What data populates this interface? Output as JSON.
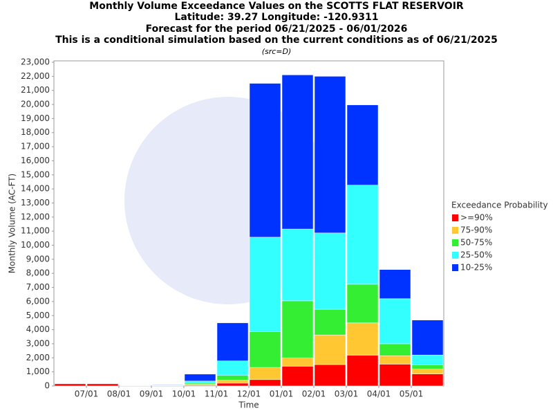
{
  "chart_data": {
    "type": "stacked-bar",
    "title": "Monthly Volume Exceedance Values on the SCOTTS FLAT RESERVOIR",
    "title_lines": [
      "Latitude: 39.27 Longitude: -120.9311",
      "Forecast for the period 06/21/2025 - 06/01/2026",
      "This is a conditional simulation based on the current conditions as of 06/21/2025"
    ],
    "subtitle": "(src=D)",
    "x_label": "Time",
    "y_label": "Monthly Volume (AC-FT)",
    "legend_title": "Exceedance Probability",
    "categories": [
      null,
      "07/01",
      "08/01",
      "09/01",
      "10/01",
      "11/01",
      "12/01",
      "01/01",
      "02/01",
      "03/01",
      "04/01",
      "05/01"
    ],
    "series": [
      {
        "name": ">=90%",
        "color": "#ff0000",
        "values": [
          150,
          150,
          20,
          20,
          50,
          200,
          450,
          1400,
          1520,
          2180,
          1550,
          850
        ]
      },
      {
        "name": "75-90%",
        "color": "#ffc833",
        "values": [
          0,
          0,
          10,
          10,
          50,
          200,
          870,
          600,
          2100,
          2300,
          600,
          350
        ]
      },
      {
        "name": "50-75%",
        "color": "#33ee33",
        "values": [
          0,
          0,
          10,
          10,
          100,
          350,
          2530,
          4050,
          1830,
          2750,
          850,
          300
        ]
      },
      {
        "name": "25-50%",
        "color": "#33ffff",
        "values": [
          0,
          0,
          10,
          30,
          150,
          1030,
          6720,
          5100,
          5420,
          7040,
          3200,
          700
        ]
      },
      {
        "name": "10-25%",
        "color": "#0033ff",
        "values": [
          0,
          0,
          10,
          30,
          490,
          2700,
          10930,
          10950,
          11130,
          5700,
          2070,
          2480
        ]
      }
    ],
    "ylim": [
      0,
      23000
    ],
    "yticks": [
      0,
      {
        "value": 1000,
        "label": "1,000"
      },
      {
        "value": 2000,
        "label": "2,000"
      },
      {
        "value": 3000,
        "label": "3,000"
      },
      {
        "value": 4000,
        "label": "4,000"
      },
      {
        "value": 5000,
        "label": "5,000"
      },
      {
        "value": 6000,
        "label": "6,000"
      },
      {
        "value": 7000,
        "label": "7,000"
      },
      {
        "value": 8000,
        "label": "8,000"
      },
      {
        "value": 9000,
        "label": "9,000"
      },
      {
        "value": 10000,
        "label": "10,000"
      },
      {
        "value": 11000,
        "label": "11,000"
      },
      {
        "value": 12000,
        "label": "12,000"
      },
      {
        "value": 13000,
        "label": "13,000"
      },
      {
        "value": 14000,
        "label": "14,000"
      },
      {
        "value": 15000,
        "label": "15,000"
      },
      {
        "value": 16000,
        "label": "16,000"
      },
      {
        "value": 17000,
        "label": "17,000"
      },
      {
        "value": 18000,
        "label": "18,000"
      },
      {
        "value": 19000,
        "label": "19,000"
      },
      {
        "value": 20000,
        "label": "20,000"
      },
      {
        "value": 21000,
        "label": "21,000"
      },
      {
        "value": 22000,
        "label": "22,000"
      },
      {
        "value": 23000,
        "label": "23,000"
      }
    ],
    "grid": false,
    "legend_position": "right"
  }
}
